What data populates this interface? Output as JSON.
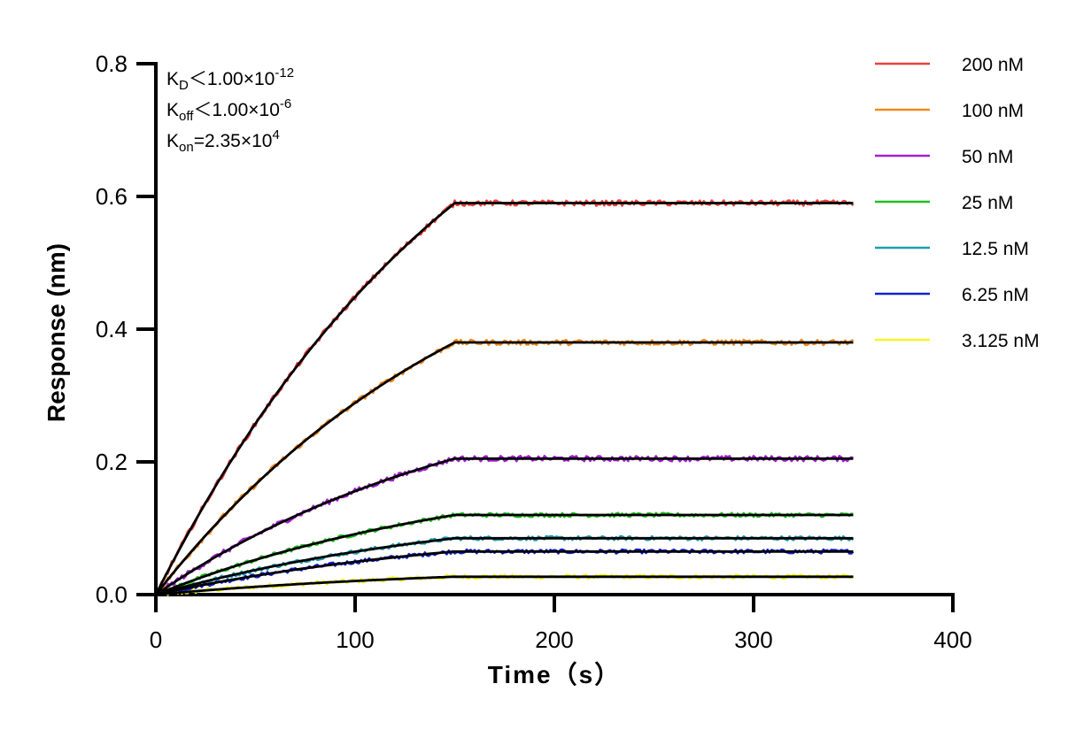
{
  "chart_data": {
    "type": "line",
    "xlabel": "Time（s）",
    "ylabel": "Response (nm)",
    "xlim": [
      0,
      400
    ],
    "ylim": [
      0,
      0.8
    ],
    "xticks": [
      "0",
      "100",
      "200",
      "300",
      "400"
    ],
    "yticks": [
      "0.0",
      "0.2",
      "0.4",
      "0.6",
      "0.8"
    ],
    "grid": false,
    "legend_position": "top-right",
    "association_end": 150,
    "dissociation_end": 350,
    "fit_color": "#000000",
    "series": [
      {
        "name": "200 nM",
        "color": "#e8413c",
        "plateau": 0.59,
        "noise": 0.004
      },
      {
        "name": "100 nM",
        "color": "#f28a1c",
        "plateau": 0.38,
        "noise": 0.004
      },
      {
        "name": "50 nM",
        "color": "#a21fd0",
        "plateau": 0.205,
        "noise": 0.004
      },
      {
        "name": "25 nM",
        "color": "#1fbf1f",
        "plateau": 0.12,
        "noise": 0.003
      },
      {
        "name": "12.5 nM",
        "color": "#1a9fb0",
        "plateau": 0.085,
        "noise": 0.003
      },
      {
        "name": "6.25 nM",
        "color": "#1020d8",
        "plateau": 0.065,
        "noise": 0.003
      },
      {
        "name": "3.125 nM",
        "color": "#f5f520",
        "plateau": 0.027,
        "noise": 0.003
      }
    ],
    "annotations": {
      "kd": {
        "main": "K",
        "sub": "D",
        "rel": "＜",
        "val": "1.00×10",
        "exp": "-12"
      },
      "koff": {
        "main": "K",
        "sub": "off",
        "rel": "＜",
        "val": "1.00×10",
        "exp": "-6"
      },
      "kon": {
        "main": "K",
        "sub": "on",
        "rel": "=",
        "val": "2.35×10",
        "exp": "4"
      }
    }
  }
}
